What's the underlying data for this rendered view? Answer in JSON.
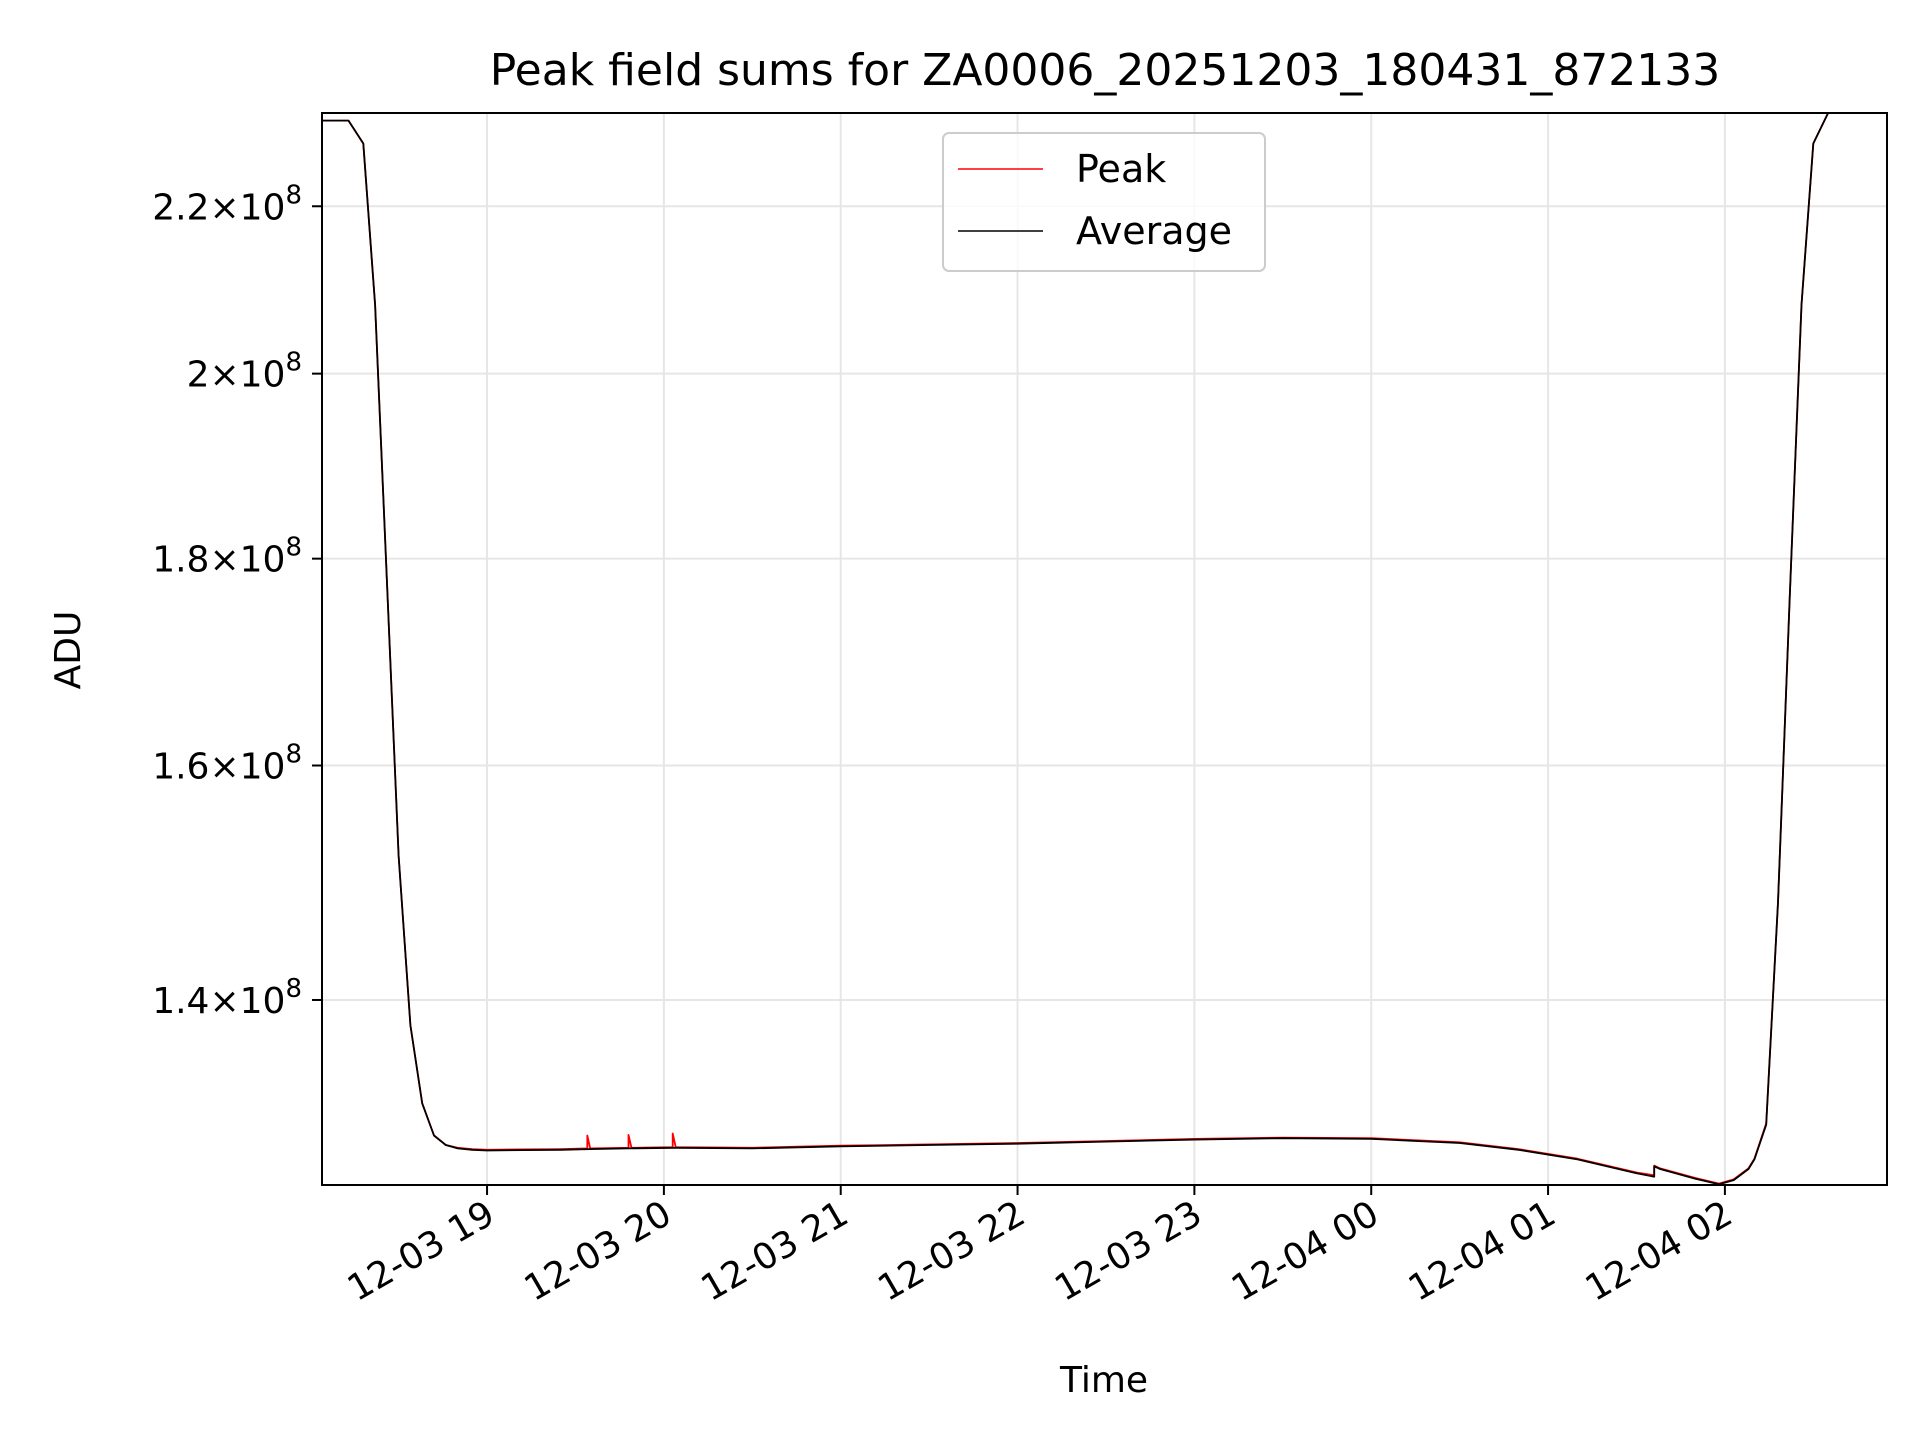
{
  "chart_data": {
    "type": "line",
    "title": "Peak field sums for ZA0006_20251203_180431_872133",
    "xlabel": "Time",
    "ylabel": "ADU",
    "y_scale": "log",
    "xlim": [
      "2025-12-03 18:04",
      "2025-12-04 02:55"
    ],
    "ylim": [
      126000000,
      232000000
    ],
    "grid": true,
    "legend_position": "top-center",
    "x_ticks": [
      {
        "value": "2025-12-03 19:00",
        "label": "12-03 19"
      },
      {
        "value": "2025-12-03 20:00",
        "label": "12-03 20"
      },
      {
        "value": "2025-12-03 21:00",
        "label": "12-03 21"
      },
      {
        "value": "2025-12-03 22:00",
        "label": "12-03 22"
      },
      {
        "value": "2025-12-03 23:00",
        "label": "12-03 23"
      },
      {
        "value": "2025-12-04 00:00",
        "label": "12-04 00"
      },
      {
        "value": "2025-12-04 01:00",
        "label": "12-04 01"
      },
      {
        "value": "2025-12-04 02:00",
        "label": "12-04 02"
      }
    ],
    "y_ticks": [
      {
        "value": 140000000,
        "mantissa": "1.4",
        "exp": "8"
      },
      {
        "value": 160000000,
        "mantissa": "1.6",
        "exp": "8"
      },
      {
        "value": 180000000,
        "mantissa": "1.8",
        "exp": "8"
      },
      {
        "value": 200000000,
        "mantissa": "2",
        "exp": "8"
      },
      {
        "value": 220000000,
        "mantissa": "2.2",
        "exp": "8"
      }
    ],
    "series": [
      {
        "name": "Peak",
        "color": "#ff0000",
        "x": [
          "2025-12-03 18:04",
          "2025-12-03 18:13",
          "2025-12-03 18:18",
          "2025-12-03 18:22",
          "2025-12-03 18:26",
          "2025-12-03 18:30",
          "2025-12-03 18:34",
          "2025-12-03 18:38",
          "2025-12-03 18:42",
          "2025-12-03 18:46",
          "2025-12-03 18:50",
          "2025-12-03 18:55",
          "2025-12-03 19:00",
          "2025-12-03 19:12",
          "2025-12-03 19:25",
          "2025-12-03 19:34",
          "2025-12-03 19:34",
          "2025-12-03 19:35",
          "2025-12-03 19:48",
          "2025-12-03 19:48",
          "2025-12-03 19:49",
          "2025-12-03 20:03",
          "2025-12-03 20:03",
          "2025-12-03 20:04",
          "2025-12-03 20:30",
          "2025-12-03 21:00",
          "2025-12-03 21:30",
          "2025-12-03 22:00",
          "2025-12-03 22:30",
          "2025-12-03 23:00",
          "2025-12-03 23:30",
          "2025-12-04 00:00",
          "2025-12-04 00:30",
          "2025-12-04 00:50",
          "2025-12-04 01:10",
          "2025-12-04 01:30",
          "2025-12-04 01:36",
          "2025-12-04 01:36",
          "2025-12-04 01:38",
          "2025-12-04 01:50",
          "2025-12-04 01:58",
          "2025-12-04 02:03",
          "2025-12-04 02:08",
          "2025-12-04 02:10",
          "2025-12-04 02:14",
          "2025-12-04 02:18",
          "2025-12-04 02:22",
          "2025-12-04 02:26",
          "2025-12-04 02:30",
          "2025-12-04 02:35"
        ],
        "values": [
          231000000,
          231000000,
          228000000,
          208000000,
          178000000,
          152000000,
          138000000,
          132000000,
          129600000,
          128900000,
          128700000,
          128600000,
          128550000,
          128580000,
          128600000,
          128650000,
          129600000,
          128650000,
          128700000,
          129650000,
          128700000,
          128750000,
          129750000,
          128750000,
          128700000,
          128850000,
          128950000,
          129050000,
          129200000,
          129350000,
          129450000,
          129400000,
          129100000,
          128600000,
          127900000,
          126900000,
          126700000,
          127400000,
          127200000,
          126500000,
          126100000,
          126400000,
          127200000,
          127900000,
          130500000,
          148000000,
          176000000,
          208000000,
          228000000,
          232000000
        ]
      },
      {
        "name": "Average",
        "color": "#000000",
        "x": [
          "2025-12-03 18:04",
          "2025-12-03 18:13",
          "2025-12-03 18:18",
          "2025-12-03 18:22",
          "2025-12-03 18:26",
          "2025-12-03 18:30",
          "2025-12-03 18:34",
          "2025-12-03 18:38",
          "2025-12-03 18:42",
          "2025-12-03 18:46",
          "2025-12-03 18:50",
          "2025-12-03 18:55",
          "2025-12-03 19:00",
          "2025-12-03 19:12",
          "2025-12-03 19:25",
          "2025-12-03 19:35",
          "2025-12-03 19:48",
          "2025-12-03 20:04",
          "2025-12-03 20:30",
          "2025-12-03 21:00",
          "2025-12-03 21:30",
          "2025-12-03 22:00",
          "2025-12-03 22:30",
          "2025-12-03 23:00",
          "2025-12-03 23:30",
          "2025-12-04 00:00",
          "2025-12-04 00:30",
          "2025-12-04 00:50",
          "2025-12-04 01:10",
          "2025-12-04 01:30",
          "2025-12-04 01:36",
          "2025-12-04 01:36",
          "2025-12-04 01:38",
          "2025-12-04 01:50",
          "2025-12-04 01:58",
          "2025-12-04 02:03",
          "2025-12-04 02:08",
          "2025-12-04 02:10",
          "2025-12-04 02:14",
          "2025-12-04 02:18",
          "2025-12-04 02:22",
          "2025-12-04 02:26",
          "2025-12-04 02:30",
          "2025-12-04 02:35"
        ],
        "values": [
          231000000,
          231000000,
          228000000,
          208000000,
          178000000,
          152000000,
          138000000,
          132000000,
          129600000,
          128900000,
          128650000,
          128550000,
          128500000,
          128530000,
          128550000,
          128600000,
          128650000,
          128700000,
          128650000,
          128800000,
          128900000,
          129000000,
          129150000,
          129300000,
          129400000,
          129350000,
          129050000,
          128550000,
          127850000,
          126850000,
          126600000,
          127350000,
          127150000,
          126450000,
          126050000,
          126350000,
          127150000,
          127850000,
          130400000,
          148000000,
          176000000,
          208000000,
          228000000,
          232000000
        ]
      }
    ]
  }
}
